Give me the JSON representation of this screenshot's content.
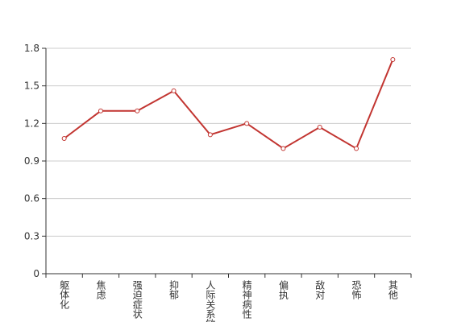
{
  "chart_data": {
    "type": "line",
    "categories": [
      "躯体化",
      "焦虑",
      "强迫症状",
      "抑郁",
      "人际关系敏感",
      "精神病性",
      "偏执",
      "敌对",
      "恐怖",
      "其他"
    ],
    "values": [
      1.08,
      1.3,
      1.3,
      1.46,
      1.11,
      1.2,
      1.0,
      1.17,
      1.0,
      1.71
    ],
    "color": "#c23531",
    "ylim": [
      0,
      1.8
    ],
    "yticks": [
      0,
      0.3,
      0.6,
      0.9,
      1.2,
      1.5,
      1.8
    ],
    "grid": true
  }
}
